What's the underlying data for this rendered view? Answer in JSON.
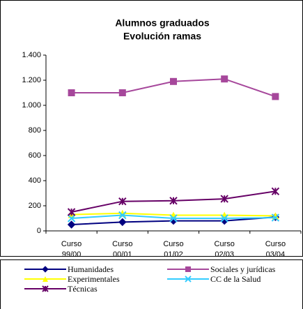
{
  "chart_data": {
    "type": "line",
    "title": "Alumnos graduados",
    "subtitle": "Evolución ramas",
    "categories": [
      "Curso 99/00",
      "Curso 00/01",
      "Curso 01/02",
      "Curso 02/03",
      "Curso 03/04"
    ],
    "series": [
      {
        "name": "Humanidades",
        "color": "#000080",
        "marker": "diamond",
        "values": [
          50,
          70,
          80,
          80,
          110
        ]
      },
      {
        "name": "Sociales y jurídicas",
        "color": "#a6479b",
        "marker": "square",
        "values": [
          1100,
          1100,
          1190,
          1210,
          1070
        ]
      },
      {
        "name": "Experimentales",
        "color": "#ffff00",
        "marker": "triangle",
        "values": [
          130,
          140,
          125,
          125,
          120
        ]
      },
      {
        "name": "CC de la Salud",
        "color": "#33ccff",
        "marker": "x",
        "values": [
          100,
          125,
          100,
          100,
          105
        ]
      },
      {
        "name": "Técnicas",
        "color": "#660066",
        "marker": "asterisk",
        "values": [
          150,
          235,
          240,
          255,
          315
        ]
      }
    ],
    "ylim": [
      0,
      1400
    ],
    "yticks": [
      0,
      200,
      400,
      600,
      800,
      {
        "value": 1000,
        "label": "1.000"
      },
      {
        "value": 1200,
        "label": "1.200"
      },
      {
        "value": 1400,
        "label": "1.400"
      }
    ],
    "grid": false,
    "legend": "bottom"
  }
}
